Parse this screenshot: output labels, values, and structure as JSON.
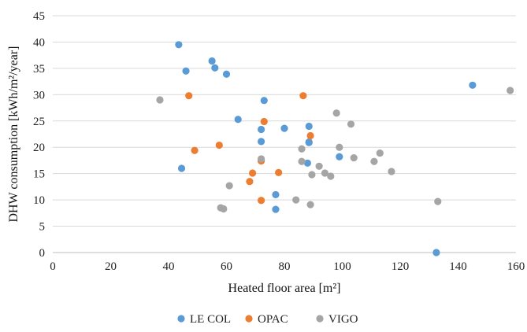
{
  "chart_data": {
    "type": "scatter",
    "title": "",
    "xlabel": "Heated floor area [m²]",
    "ylabel": "DHW consumption [kWh/m²/year]",
    "xlim": [
      0,
      160
    ],
    "ylim": [
      0,
      45
    ],
    "x_ticks": [
      "0",
      "20",
      "40",
      "60",
      "80",
      "100",
      "120",
      "140",
      "160"
    ],
    "y_ticks": [
      "0",
      "5",
      "10",
      "15",
      "20",
      "25",
      "30",
      "35",
      "40",
      "45"
    ],
    "grid": "horizontal",
    "legend_position": "bottom",
    "series": [
      {
        "name": "LE COL",
        "color": "#5B9BD5",
        "points": [
          [
            43.5,
            39.5
          ],
          [
            55,
            36.4
          ],
          [
            46,
            34.5
          ],
          [
            56,
            35.1
          ],
          [
            60,
            33.9
          ],
          [
            73,
            28.9
          ],
          [
            64,
            25.3
          ],
          [
            72,
            23.4
          ],
          [
            80,
            23.6
          ],
          [
            88.5,
            24
          ],
          [
            72,
            21.1
          ],
          [
            88.5,
            21
          ],
          [
            88.5,
            20.9
          ],
          [
            99,
            18.2
          ],
          [
            88,
            17
          ],
          [
            44.5,
            16
          ],
          [
            77,
            11
          ],
          [
            77,
            8.2
          ],
          [
            145,
            31.8
          ],
          [
            132.5,
            0
          ]
        ]
      },
      {
        "name": "OPAC",
        "color": "#ED7D31",
        "points": [
          [
            47,
            29.8
          ],
          [
            86.5,
            29.8
          ],
          [
            73,
            24.9
          ],
          [
            89,
            22.2
          ],
          [
            57.5,
            20.4
          ],
          [
            49,
            19.4
          ],
          [
            72,
            17.4
          ],
          [
            69,
            15.1
          ],
          [
            78,
            15.2
          ],
          [
            68,
            13.5
          ],
          [
            72,
            9.9
          ]
        ]
      },
      {
        "name": "VIGO",
        "color": "#A5A5A5",
        "points": [
          [
            37,
            29
          ],
          [
            158,
            30.8
          ],
          [
            98,
            26.5
          ],
          [
            103,
            24.4
          ],
          [
            86,
            19.7
          ],
          [
            99,
            20
          ],
          [
            113,
            18.9
          ],
          [
            104,
            18
          ],
          [
            111,
            17.3
          ],
          [
            86,
            17.3
          ],
          [
            92,
            16.4
          ],
          [
            117,
            15.4
          ],
          [
            94,
            15.1
          ],
          [
            96,
            14.5
          ],
          [
            89.5,
            14.8
          ],
          [
            72,
            17.8
          ],
          [
            61,
            12.7
          ],
          [
            84,
            10
          ],
          [
            89,
            9.1
          ],
          [
            58,
            8.5
          ],
          [
            59,
            8.3
          ],
          [
            133,
            9.7
          ]
        ]
      }
    ]
  }
}
